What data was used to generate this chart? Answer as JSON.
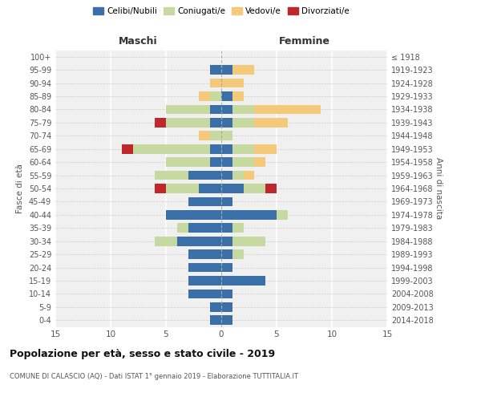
{
  "age_groups": [
    "0-4",
    "5-9",
    "10-14",
    "15-19",
    "20-24",
    "25-29",
    "30-34",
    "35-39",
    "40-44",
    "45-49",
    "50-54",
    "55-59",
    "60-64",
    "65-69",
    "70-74",
    "75-79",
    "80-84",
    "85-89",
    "90-94",
    "95-99",
    "100+"
  ],
  "birth_years": [
    "2014-2018",
    "2009-2013",
    "2004-2008",
    "1999-2003",
    "1994-1998",
    "1989-1993",
    "1984-1988",
    "1979-1983",
    "1974-1978",
    "1969-1973",
    "1964-1968",
    "1959-1963",
    "1954-1958",
    "1949-1953",
    "1944-1948",
    "1939-1943",
    "1934-1938",
    "1929-1933",
    "1924-1928",
    "1919-1923",
    "≤ 1918"
  ],
  "males": {
    "celibi": [
      1,
      1,
      3,
      3,
      3,
      3,
      4,
      3,
      5,
      3,
      2,
      3,
      1,
      1,
      0,
      1,
      1,
      0,
      0,
      1,
      0
    ],
    "coniugati": [
      0,
      0,
      0,
      0,
      0,
      0,
      2,
      1,
      0,
      0,
      3,
      3,
      4,
      7,
      1,
      4,
      4,
      1,
      0,
      0,
      0
    ],
    "vedovi": [
      0,
      0,
      0,
      0,
      0,
      0,
      0,
      0,
      0,
      0,
      0,
      0,
      0,
      0,
      1,
      0,
      0,
      1,
      1,
      0,
      0
    ],
    "divorziati": [
      0,
      0,
      0,
      0,
      0,
      0,
      0,
      0,
      0,
      0,
      1,
      0,
      0,
      1,
      0,
      1,
      0,
      0,
      0,
      0,
      0
    ]
  },
  "females": {
    "nubili": [
      1,
      1,
      1,
      4,
      1,
      1,
      1,
      1,
      5,
      1,
      2,
      1,
      1,
      1,
      0,
      1,
      1,
      1,
      0,
      1,
      0
    ],
    "coniugate": [
      0,
      0,
      0,
      0,
      0,
      1,
      3,
      1,
      1,
      0,
      2,
      1,
      2,
      2,
      1,
      2,
      2,
      0,
      0,
      0,
      0
    ],
    "vedove": [
      0,
      0,
      0,
      0,
      0,
      0,
      0,
      0,
      0,
      0,
      0,
      1,
      1,
      2,
      0,
      3,
      6,
      1,
      2,
      2,
      0
    ],
    "divorziate": [
      0,
      0,
      0,
      0,
      0,
      0,
      0,
      0,
      0,
      0,
      1,
      0,
      0,
      0,
      0,
      0,
      0,
      0,
      0,
      0,
      0
    ]
  },
  "colors": {
    "celibi": "#3a6fa8",
    "coniugati": "#c5d9a0",
    "vedovi": "#f5c97a",
    "divorziati": "#c0272d"
  },
  "xlim": 15,
  "title": "Popolazione per età, sesso e stato civile - 2019",
  "subtitle": "COMUNE DI CALASCIO (AQ) - Dati ISTAT 1° gennaio 2019 - Elaborazione TUTTITALIA.IT",
  "ylabel_left": "Fasce di età",
  "ylabel_right": "Anni di nascita",
  "xlabel_maschi": "Maschi",
  "xlabel_femmine": "Femmine",
  "legend_labels": [
    "Celibi/Nubili",
    "Coniugati/e",
    "Vedovi/e",
    "Divorziati/e"
  ],
  "background_color": "#f0f0f0"
}
